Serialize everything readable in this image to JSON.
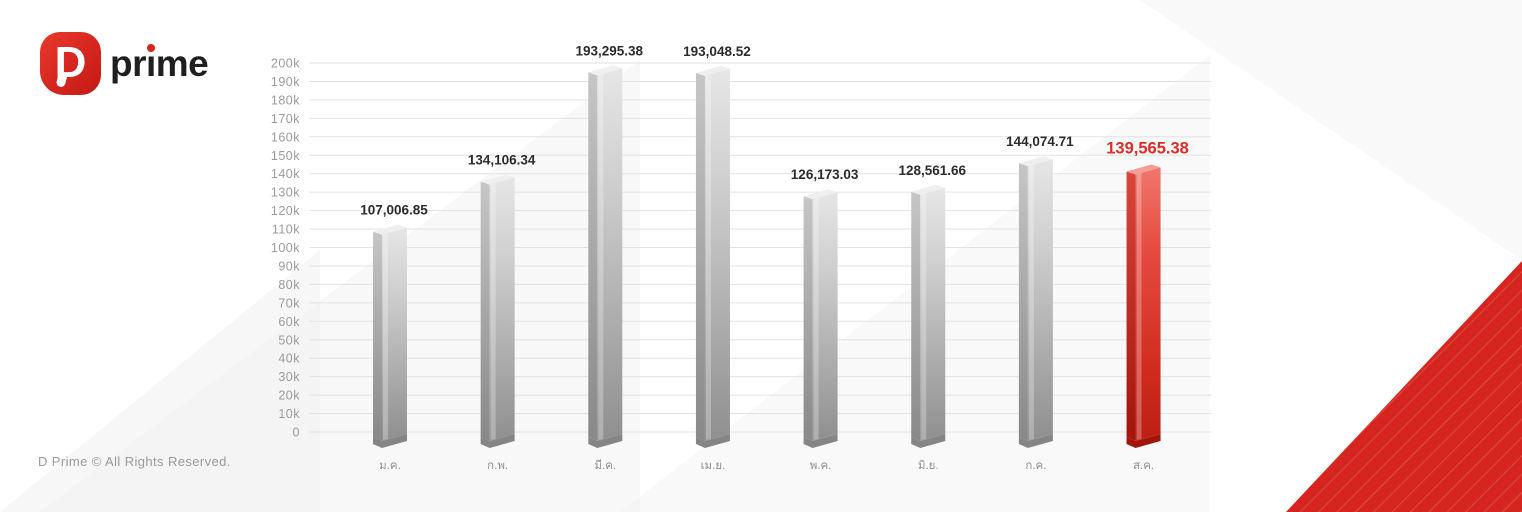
{
  "logo": {
    "icon_letter": "D",
    "brand_parts": [
      "pr",
      "i",
      "me"
    ]
  },
  "footer": {
    "copyright": "D Prime © All Rights Reserved."
  },
  "chart_data": {
    "type": "bar",
    "title": "",
    "categories": [
      "ม.ค.",
      "ก.พ.",
      "มี.ค.",
      "เม.ย.",
      "พ.ค.",
      "มิ.ย.",
      "ก.ค.",
      "ส.ค."
    ],
    "values": [
      107006.85,
      134106.34,
      193295.38,
      193048.52,
      126173.03,
      128561.66,
      144074.71,
      139565.38
    ],
    "value_labels": [
      "107,006.85",
      "134,106.34",
      "193,295.38",
      "193,048.52",
      "126,173.03",
      "128,561.66",
      "144,074.71",
      "139,565.38"
    ],
    "highlight_index": 7,
    "ylim": [
      0,
      200000
    ],
    "ytick_labels": [
      "0",
      "10k",
      "20k",
      "30k",
      "40k",
      "50k",
      "60k",
      "70k",
      "80k",
      "90k",
      "100k",
      "110k",
      "120k",
      "130k",
      "140k",
      "150k",
      "160k",
      "170k",
      "180k",
      "190k",
      "200k"
    ],
    "grid": true,
    "legend": null,
    "colors": {
      "bar_base": "#a9a9a9",
      "highlight": "#d6251f",
      "value_label": "#2b2b2b",
      "highlight_value_label": "#d92e26",
      "axis_text": "#9b9b9b",
      "month_text": "#8f8f8f",
      "gridline": "#e2e2e2"
    }
  }
}
